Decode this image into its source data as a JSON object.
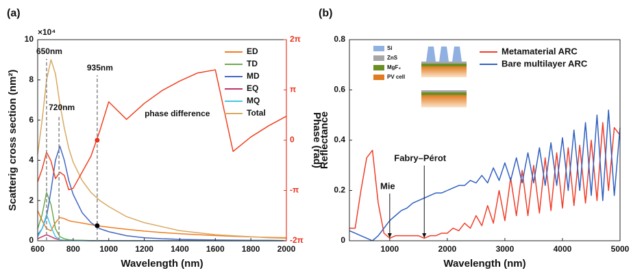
{
  "chart_data": [
    {
      "type": "line",
      "panel_label": "(a)",
      "y_multiplier": "×10⁴",
      "xlabel": "Wavelength (nm)",
      "ylabel": "Scatterig cross section (nm²)",
      "y2label": "Phase (rad)",
      "y2color": "#e8321e",
      "xlim": [
        600,
        2000
      ],
      "xticks": [
        600,
        800,
        1000,
        1200,
        1400,
        1600,
        1800,
        2000
      ],
      "ylim": [
        0,
        10
      ],
      "yticks": [
        0,
        2,
        4,
        6,
        8,
        10
      ],
      "y2lim": [
        -6.2832,
        6.2832
      ],
      "y2ticks": [
        {
          "value": -6.2832,
          "label": "-2π"
        },
        {
          "value": -3.1416,
          "label": "-π"
        },
        0,
        {
          "value": 3.1416,
          "label": "π"
        },
        {
          "value": 6.2832,
          "label": "2π"
        }
      ],
      "grid": false,
      "legend": "upper right",
      "x": [
        600,
        625,
        650,
        675,
        700,
        725,
        750,
        775,
        800,
        850,
        900,
        950,
        1000,
        1100,
        1200,
        1300,
        1400,
        1500,
        1600,
        1700,
        1800,
        1900,
        2000
      ],
      "series": [
        {
          "name": "ED",
          "color": "#f07c1e",
          "values": [
            1.5,
            1.0,
            0.6,
            0.5,
            0.9,
            1.15,
            1.1,
            1.0,
            0.95,
            0.88,
            0.8,
            0.73,
            0.67,
            0.57,
            0.48,
            0.41,
            0.35,
            0.3,
            0.26,
            0.22,
            0.19,
            0.17,
            0.15
          ]
        },
        {
          "name": "TD",
          "color": "#6aa84f",
          "values": [
            0.6,
            1.3,
            2.4,
            1.8,
            0.6,
            0.2,
            0.1,
            0.05,
            0.03,
            0.02,
            0.01,
            0.01,
            0.01,
            0,
            0,
            0,
            0,
            0,
            0,
            0,
            0,
            0,
            0
          ]
        },
        {
          "name": "MD",
          "color": "#4466c0",
          "values": [
            0.3,
            0.6,
            1.2,
            2.5,
            4.0,
            4.7,
            4.0,
            3.0,
            2.3,
            1.4,
            0.9,
            0.6,
            0.45,
            0.25,
            0.15,
            0.1,
            0.07,
            0.05,
            0.04,
            0.03,
            0.02,
            0.02,
            0.01
          ]
        },
        {
          "name": "EQ",
          "color": "#c0306a",
          "values": [
            0.1,
            0.2,
            0.3,
            0.2,
            0.1,
            0.05,
            0.02,
            0.02,
            0.01,
            0.01,
            0,
            0,
            0,
            0,
            0,
            0,
            0,
            0,
            0,
            0,
            0,
            0,
            0
          ]
        },
        {
          "name": "MQ",
          "color": "#40c8e0",
          "values": [
            0.2,
            0.6,
            1.3,
            0.7,
            0.2,
            0.05,
            0.02,
            0.02,
            0.01,
            0.01,
            0,
            0,
            0,
            0,
            0,
            0,
            0,
            0,
            0,
            0,
            0,
            0,
            0
          ]
        },
        {
          "name": "Total",
          "color": "#d8a860",
          "values": [
            4.3,
            6.0,
            8.0,
            9.0,
            8.3,
            6.8,
            5.6,
            4.6,
            3.9,
            3.0,
            2.4,
            2.0,
            1.7,
            1.2,
            0.9,
            0.7,
            0.5,
            0.4,
            0.3,
            0.25,
            0.2,
            0.15,
            0.12
          ]
        },
        {
          "name": "phase difference",
          "color": "#f04020",
          "axis": "y2",
          "values": [
            -2.6,
            -1.8,
            -0.75,
            -1.3,
            -2.4,
            -2.0,
            -2.2,
            -3.1,
            -3.0,
            -2.0,
            -1.0,
            0.6,
            2.4,
            1.3,
            2.3,
            3.1,
            3.7,
            4.2,
            4.4,
            -0.7,
            0.2,
            0.9,
            1.5
          ]
        }
      ],
      "vlines": [
        {
          "x": 650,
          "label": "650nm"
        },
        {
          "x": 720,
          "label": "720nm"
        },
        {
          "x": 935,
          "label": "935nm"
        }
      ],
      "markers": [
        {
          "x": 935,
          "y": 0,
          "color": "#e8321e",
          "axis": "y2"
        },
        {
          "x": 935,
          "y": 0.75,
          "color": "#000000"
        }
      ]
    },
    {
      "type": "line",
      "panel_label": "(b)",
      "xlabel": "Wavelength (nm)",
      "ylabel": "Reflectance",
      "xlim": [
        300,
        5000
      ],
      "xticks": [
        1000,
        2000,
        3000,
        4000,
        5000
      ],
      "ylim": [
        0,
        0.8
      ],
      "yticks": [
        0,
        0.2,
        0.4,
        0.6,
        0.8
      ],
      "grid": false,
      "legend": "upper right",
      "x": [
        300,
        400,
        500,
        600,
        700,
        800,
        900,
        1000,
        1100,
        1200,
        1300,
        1400,
        1500,
        1600,
        1700,
        1800,
        1900,
        2000,
        2100,
        2200,
        2300,
        2400,
        2500,
        2600,
        2700,
        2800,
        2900,
        3000,
        3100,
        3200,
        3300,
        3400,
        3500,
        3600,
        3700,
        3800,
        3900,
        4000,
        4100,
        4200,
        4300,
        4400,
        4500,
        4600,
        4700,
        4800,
        4900,
        5000
      ],
      "series": [
        {
          "name": "Metamaterial ARC",
          "color": "#f03c28",
          "values": [
            0.05,
            0.05,
            0.2,
            0.33,
            0.36,
            0.15,
            0.03,
            0.01,
            0.02,
            0.02,
            0.02,
            0.02,
            0.02,
            0.01,
            0.02,
            0.02,
            0.03,
            0.03,
            0.05,
            0.04,
            0.07,
            0.05,
            0.1,
            0.06,
            0.14,
            0.07,
            0.2,
            0.08,
            0.25,
            0.1,
            0.28,
            0.1,
            0.3,
            0.11,
            0.33,
            0.12,
            0.35,
            0.13,
            0.37,
            0.14,
            0.38,
            0.15,
            0.4,
            0.16,
            0.47,
            0.2,
            0.45,
            0.42
          ]
        },
        {
          "name": "Bare multilayer ARC",
          "color": "#2f5fc0",
          "values": [
            0.04,
            0.03,
            0.02,
            0.01,
            0.0,
            0.02,
            0.05,
            0.08,
            0.1,
            0.12,
            0.13,
            0.15,
            0.16,
            0.17,
            0.18,
            0.19,
            0.19,
            0.2,
            0.21,
            0.22,
            0.22,
            0.24,
            0.23,
            0.26,
            0.23,
            0.29,
            0.24,
            0.31,
            0.24,
            0.33,
            0.23,
            0.35,
            0.23,
            0.37,
            0.22,
            0.39,
            0.22,
            0.41,
            0.2,
            0.44,
            0.2,
            0.47,
            0.18,
            0.5,
            0.16,
            0.52,
            0.18,
            0.45
          ]
        }
      ],
      "annotations": [
        {
          "text": "Mie",
          "x": 1000
        },
        {
          "text": "Fabry–Pérot",
          "x": 1600
        }
      ],
      "inset_items": [
        {
          "name": "Si",
          "color": "#8fb0e0"
        },
        {
          "name": "ZnS",
          "color": "#a6a6a6"
        },
        {
          "name": "MgF₂",
          "color": "#6b8e23"
        },
        {
          "name": "PV cell",
          "color": "#e07b20"
        }
      ]
    }
  ]
}
